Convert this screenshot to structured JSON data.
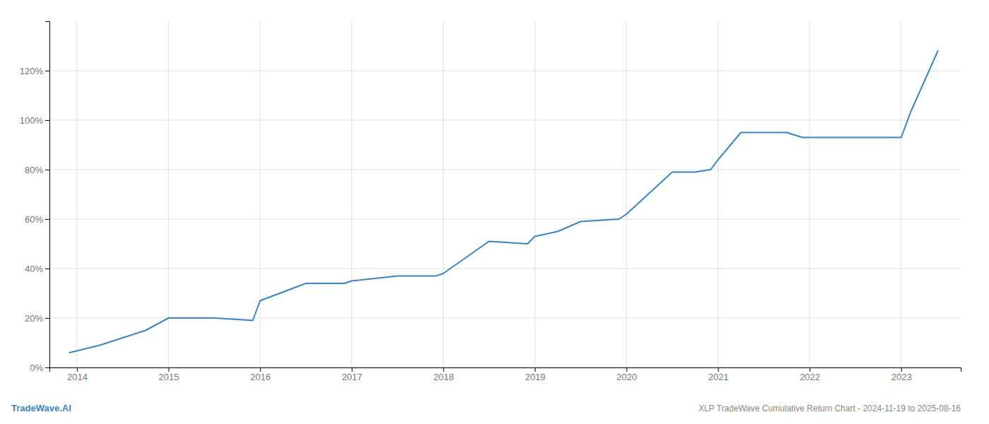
{
  "chart_data": {
    "type": "line",
    "title": "XLP TradeWave Cumulative Return Chart - 2024-11-19 to 2025-08-16",
    "annotations": [
      "TradeWave.AI"
    ],
    "x": [
      2013.92,
      2014.25,
      2014.75,
      2015.0,
      2015.5,
      2015.92,
      2016.0,
      2016.5,
      2016.92,
      2017.0,
      2017.5,
      2017.92,
      2018.0,
      2018.5,
      2018.92,
      2019.0,
      2019.25,
      2019.5,
      2019.92,
      2020.0,
      2020.5,
      2020.75,
      2020.92,
      2021.0,
      2021.25,
      2021.5,
      2021.75,
      2021.92,
      2022.0,
      2022.5,
      2022.75,
      2022.92,
      2023.0,
      2023.1,
      2023.4
    ],
    "values": [
      6,
      9,
      15,
      20,
      20,
      19,
      27,
      34,
      34,
      35,
      37,
      37,
      38,
      51,
      50,
      53,
      55,
      59,
      60,
      62,
      79,
      79,
      80,
      84,
      95,
      95,
      95,
      93,
      93,
      93,
      93,
      93,
      93,
      103,
      128
    ],
    "color": "#3a85c0",
    "xlim": [
      2013.7,
      2023.65
    ],
    "ylim": [
      0,
      140
    ],
    "xticks": [
      2014,
      2015,
      2016,
      2017,
      2018,
      2019,
      2020,
      2021,
      2022,
      2023
    ],
    "yticks": [
      {
        "value": 0,
        "label": "0%"
      },
      {
        "value": 20,
        "label": "20%"
      },
      {
        "value": 40,
        "label": "40%"
      },
      {
        "value": 60,
        "label": "60%"
      },
      {
        "value": 80,
        "label": "80%"
      },
      {
        "value": 100,
        "label": "100%"
      },
      {
        "value": 120,
        "label": "120%"
      }
    ],
    "grid": true
  }
}
